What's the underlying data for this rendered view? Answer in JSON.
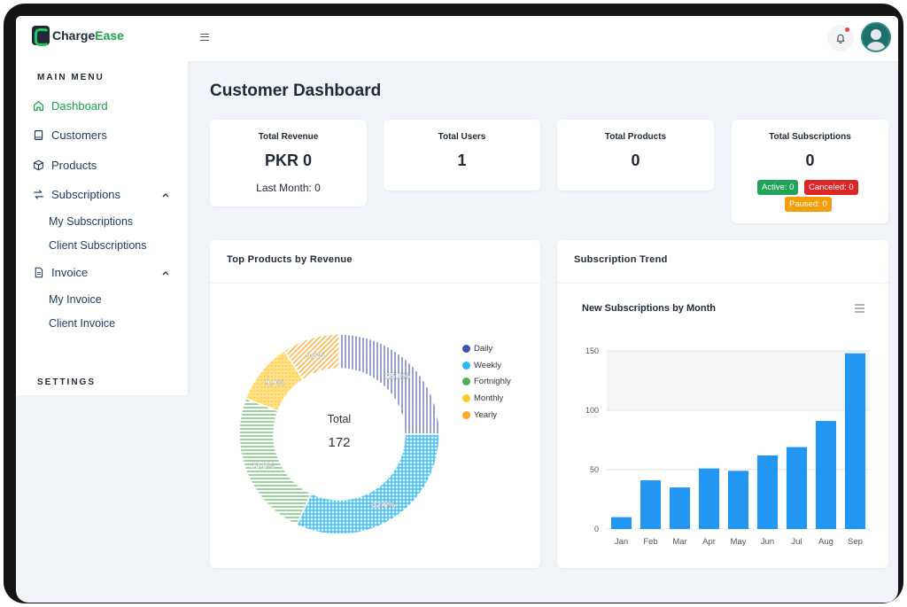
{
  "app": {
    "logo_part1": "Charge",
    "logo_part2": "Ease"
  },
  "sidebar": {
    "main_menu_title": "MAIN MENU",
    "settings_title": "SETTINGS",
    "items": [
      {
        "label": "Dashboard",
        "icon": "home-icon",
        "active": true
      },
      {
        "label": "Customers",
        "icon": "book-icon"
      },
      {
        "label": "Products",
        "icon": "box-icon"
      },
      {
        "label": "Subscriptions",
        "icon": "refresh-icon",
        "expanded": true
      },
      {
        "label": "Invoice",
        "icon": "document-icon",
        "expanded": true
      }
    ],
    "subscription_children": [
      "My Subscriptions",
      "Client Subscriptions"
    ],
    "invoice_children": [
      "My Invoice",
      "Client Invoice"
    ]
  },
  "header": {
    "menu_icon": "hamburger-icon",
    "notification_icon": "bell-icon",
    "avatar_icon": "user-avatar"
  },
  "main": {
    "title": "Customer Dashboard",
    "stats": {
      "revenue": {
        "title": "Total Revenue",
        "value": "PKR 0",
        "sub": "Last Month: 0"
      },
      "users": {
        "title": "Total Users",
        "value": "1"
      },
      "products": {
        "title": "Total Products",
        "value": "0"
      },
      "subscriptions": {
        "title": "Total Subscriptions",
        "value": "0",
        "active": "Active: 0",
        "canceled": "Canceled: 0",
        "paused": "Paused: 0"
      }
    },
    "top_products": {
      "panel_title": "Top Products by Revenue",
      "center_label": "Total",
      "center_value": "172"
    },
    "subscription_trend": {
      "panel_title": "Subscription Trend",
      "menu_icon": "chart-menu-icon"
    }
  },
  "colors": {
    "accent": "#16a34a",
    "active_badge": "#22a35a",
    "canceled_badge": "#dc2626",
    "paused_badge": "#f59e0b",
    "bar": "#2196f3"
  },
  "chart_data": [
    {
      "type": "pie",
      "legend_position": "right",
      "labels": [
        "Daily",
        "Weekly",
        "Fortnighly",
        "Monthly",
        "Yearly"
      ],
      "values": [
        25.0,
        32.0,
        23.8,
        9.9,
        9.3
      ],
      "value_labels": [
        "25.0%",
        "32.0%",
        "23.8%",
        "9.9%",
        "9.3%"
      ],
      "colors": [
        "#3f51b5",
        "#29b6f6",
        "#4caf50",
        "#ffca28",
        "#ffa726"
      ]
    },
    {
      "type": "bar",
      "title": "New Subscriptions by Month",
      "categories": [
        "Jan",
        "Feb",
        "Mar",
        "Apr",
        "May",
        "Jun",
        "Jul",
        "Aug",
        "Sep"
      ],
      "values": [
        10,
        41,
        35,
        51,
        49,
        62,
        69,
        91,
        148
      ],
      "ylim": [
        0,
        150
      ],
      "yticks": [
        0,
        50,
        100,
        150
      ],
      "grid": true
    }
  ]
}
